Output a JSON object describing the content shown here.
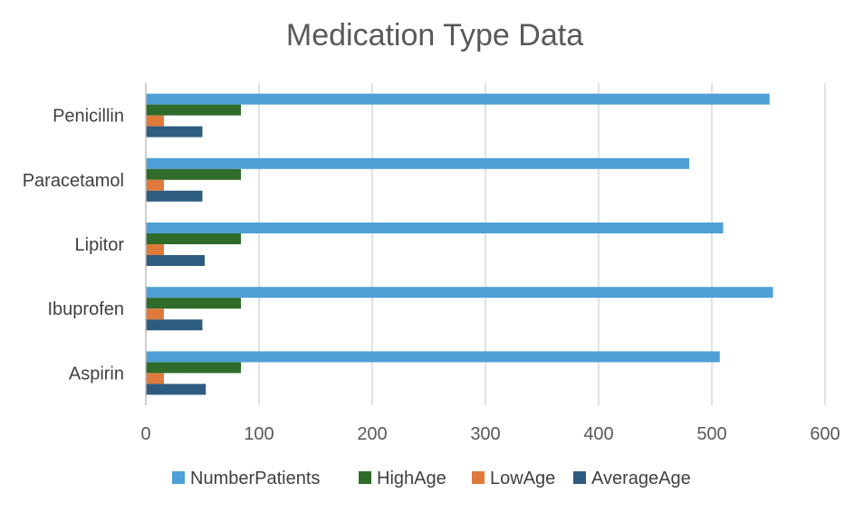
{
  "chart_data": {
    "type": "bar",
    "orientation": "horizontal",
    "title": "Medication Type Data",
    "categories": [
      "Penicillin",
      "Paracetamol",
      "Lipitor",
      "Ibuprofen",
      "Aspirin"
    ],
    "series": [
      {
        "name": "NumberPatients",
        "color": "#4ea0d6",
        "values": [
          551,
          480,
          510,
          554,
          507
        ]
      },
      {
        "name": "HighAge",
        "color": "#2f6b2a",
        "values": [
          84,
          84,
          84,
          84,
          84
        ]
      },
      {
        "name": "LowAge",
        "color": "#e07a3c",
        "values": [
          16,
          16,
          16,
          16,
          16
        ]
      },
      {
        "name": "AverageAge",
        "color": "#2e5c80",
        "values": [
          50,
          50,
          52,
          50,
          53
        ]
      }
    ],
    "xlim": [
      0,
      600
    ],
    "xticks": [
      "0",
      "100",
      "200",
      "300",
      "400",
      "500",
      "600"
    ],
    "grid": true,
    "legend": "bottom"
  }
}
